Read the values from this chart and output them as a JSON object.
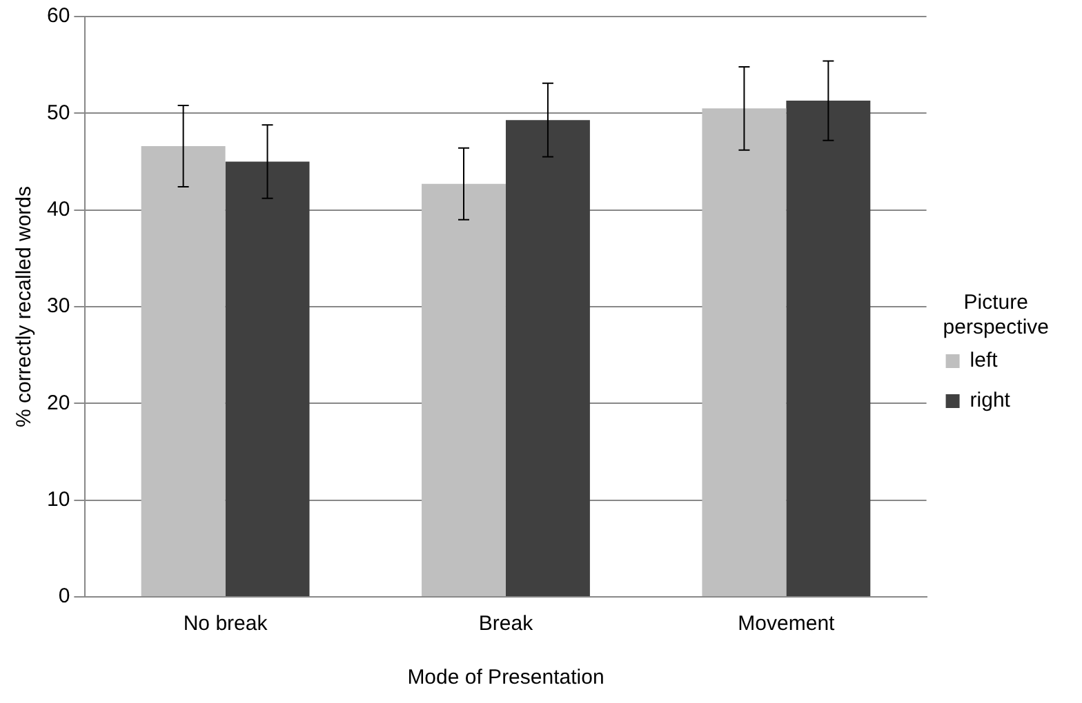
{
  "chart_data": {
    "type": "bar",
    "xlabel": "Mode of Presentation",
    "ylabel": "% correctly recalled words",
    "legend_title": "Picture perspective",
    "categories": [
      "No break",
      "Break",
      "Movement"
    ],
    "series": [
      {
        "name": "left",
        "color": "#bfbfbf",
        "values": [
          46.6,
          42.7,
          50.5
        ],
        "errors": [
          4.2,
          3.7,
          4.3
        ]
      },
      {
        "name": "right",
        "color": "#404040",
        "values": [
          45.0,
          49.3,
          51.3
        ],
        "errors": [
          3.8,
          3.8,
          4.1
        ]
      }
    ],
    "ylim": [
      0,
      60
    ],
    "yticks": [
      0,
      10,
      20,
      30,
      40,
      50,
      60
    ],
    "grid": "y",
    "legend": "right"
  }
}
